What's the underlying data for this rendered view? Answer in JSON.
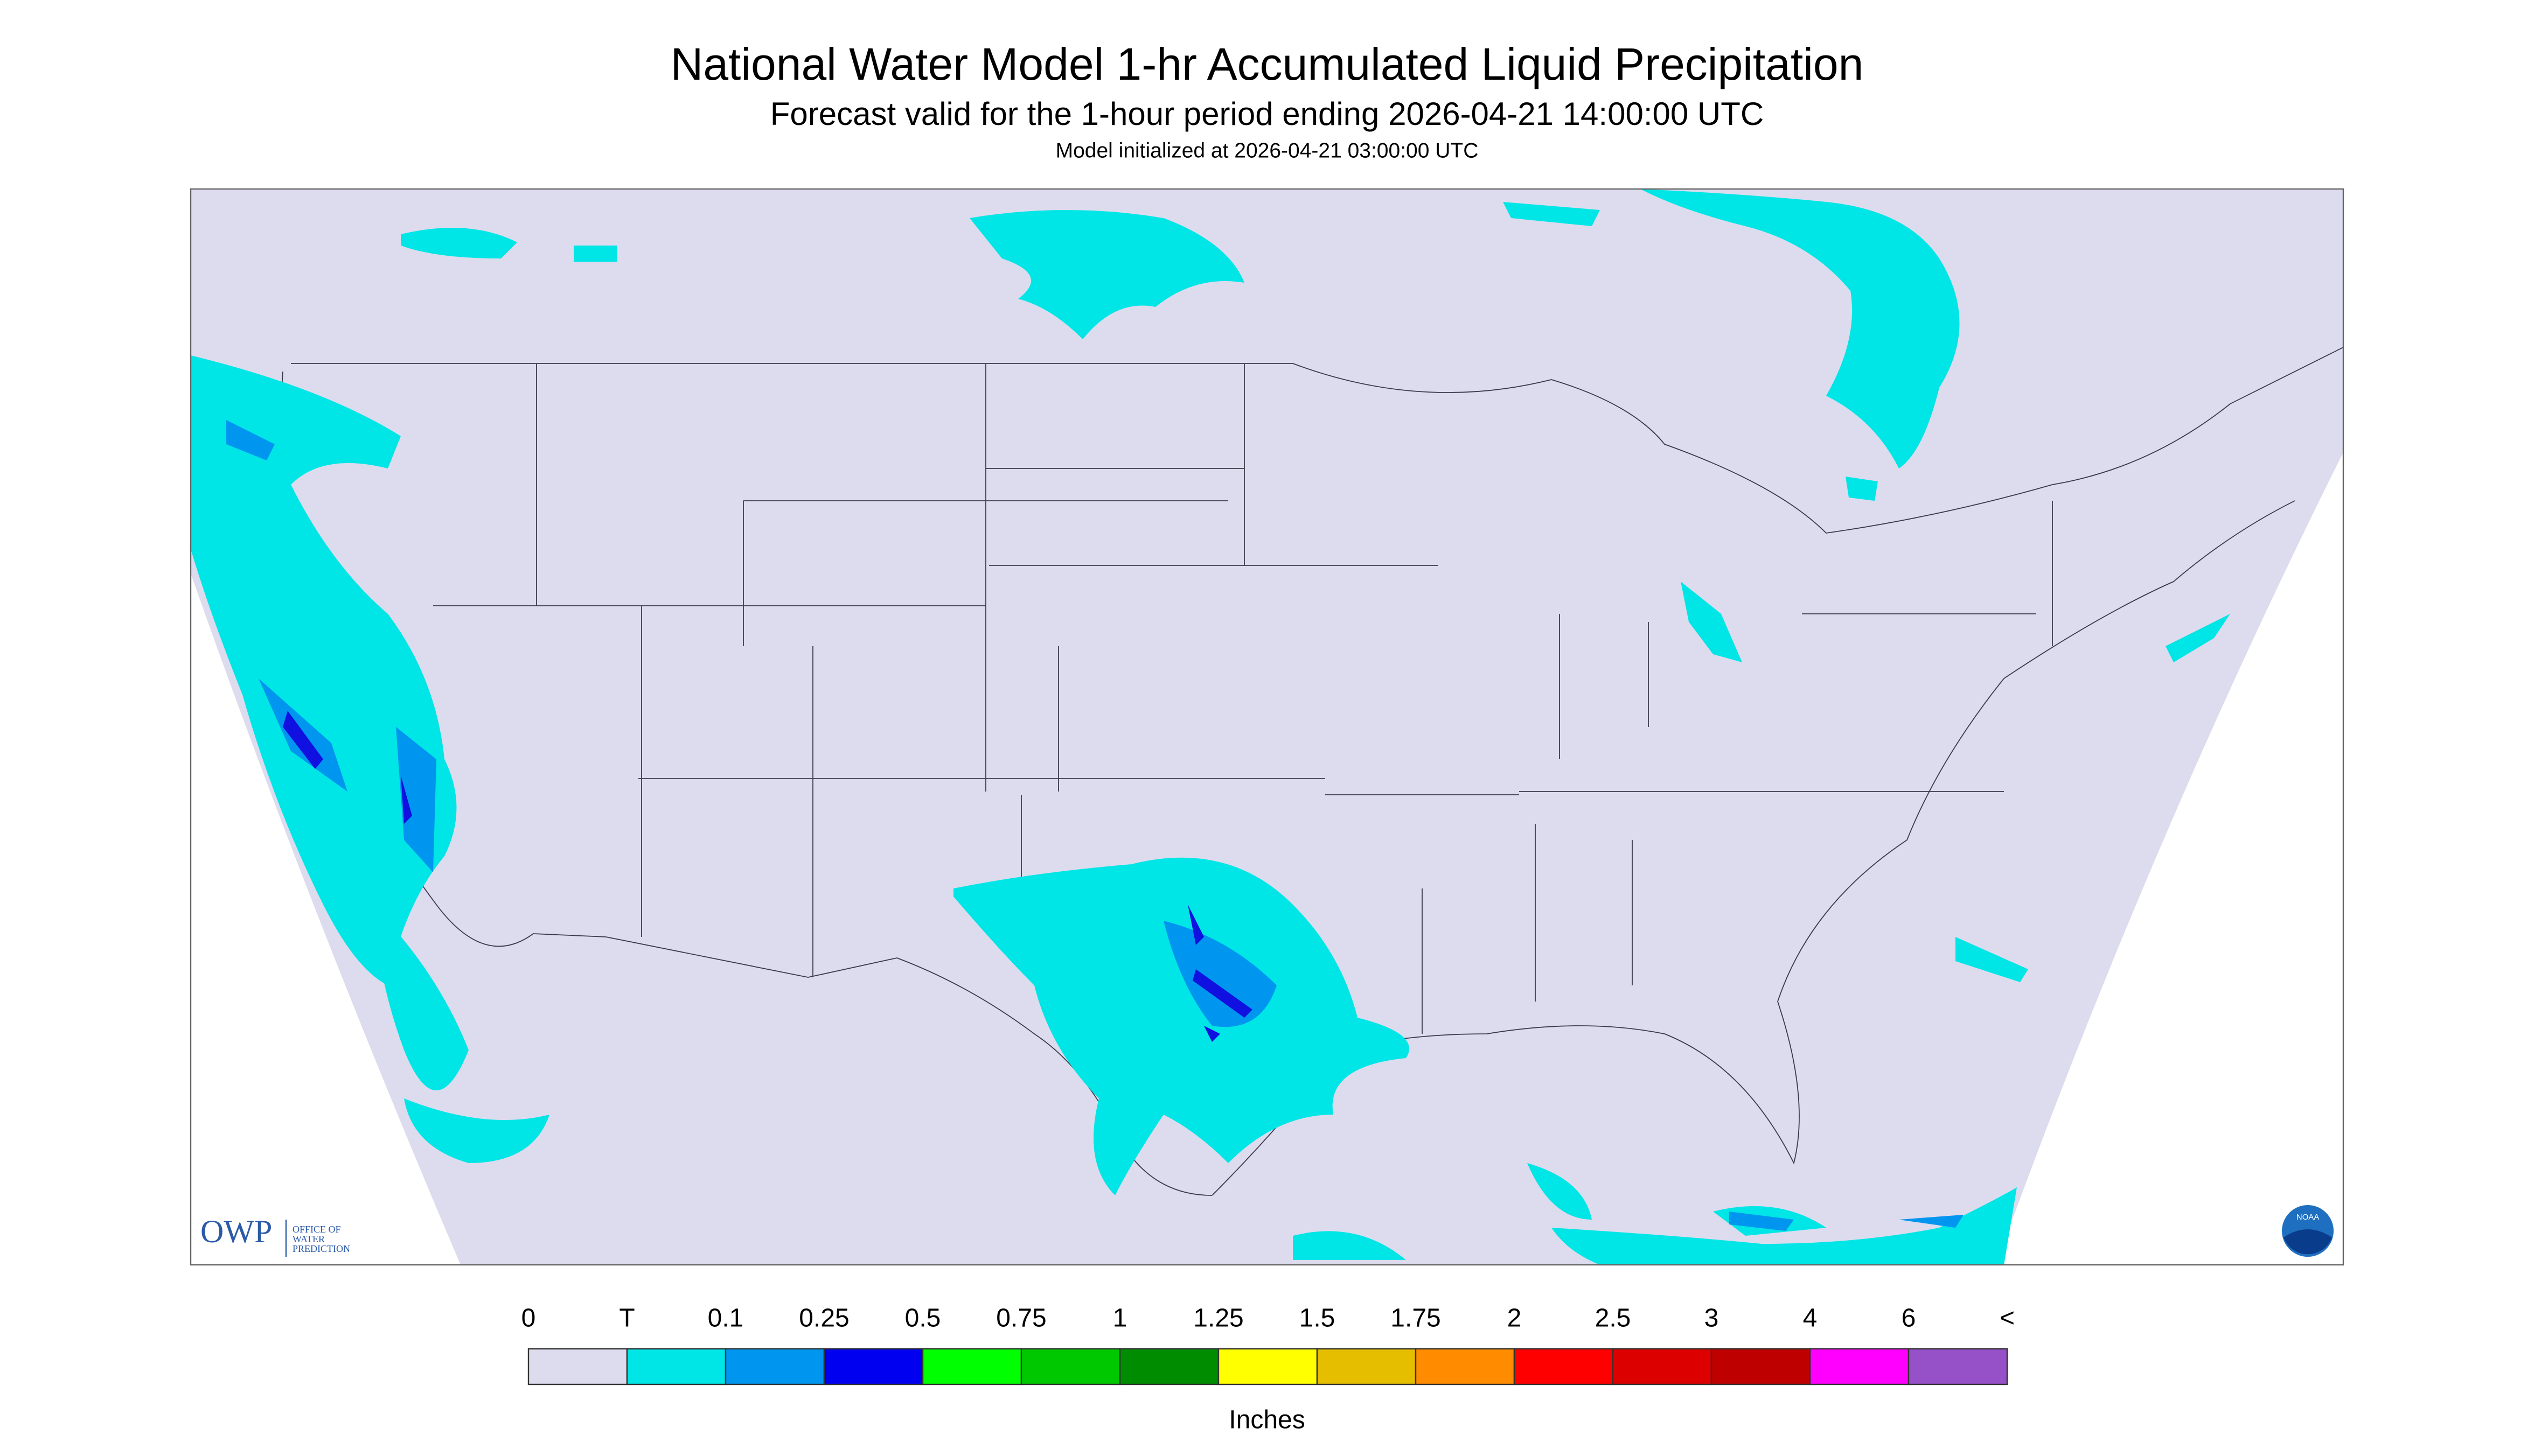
{
  "header": {
    "title": "National Water Model 1-hr Accumulated Liquid Precipitation",
    "subtitle": "Forecast valid for the 1-hour period ending 2026-04-21 14:00:00 UTC",
    "init": "Model initialized at 2026-04-21 03:00:00 UTC"
  },
  "legend": {
    "labels": [
      "0",
      "T",
      "0.1",
      "0.25",
      "0.5",
      "0.75",
      "1",
      "1.25",
      "1.5",
      "1.75",
      "2",
      "2.5",
      "3",
      "4",
      "6",
      "<"
    ],
    "colors": [
      "#dcdcee",
      "#00e5e5",
      "#0096f0",
      "#0000f0",
      "#00ff00",
      "#00c800",
      "#008c00",
      "#ffff00",
      "#e6be00",
      "#ff8c00",
      "#ff0000",
      "#dc0000",
      "#be0000",
      "#ff00ff",
      "#9650c8"
    ],
    "unit": "Inches"
  },
  "logos": {
    "owp": "OWP",
    "owp_text": [
      "OFFICE OF",
      "WATER",
      "PREDICTION"
    ],
    "noaa": "NOAA"
  }
}
